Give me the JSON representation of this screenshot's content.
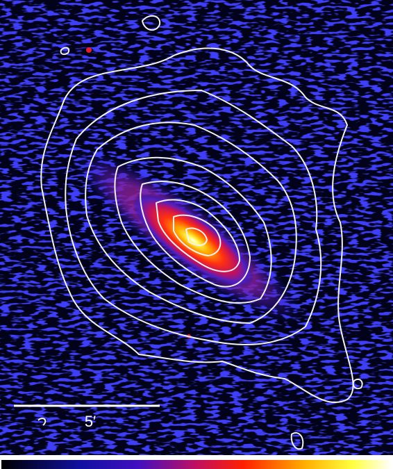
{
  "scale_bar": {
    "label": "5′"
  }
}
